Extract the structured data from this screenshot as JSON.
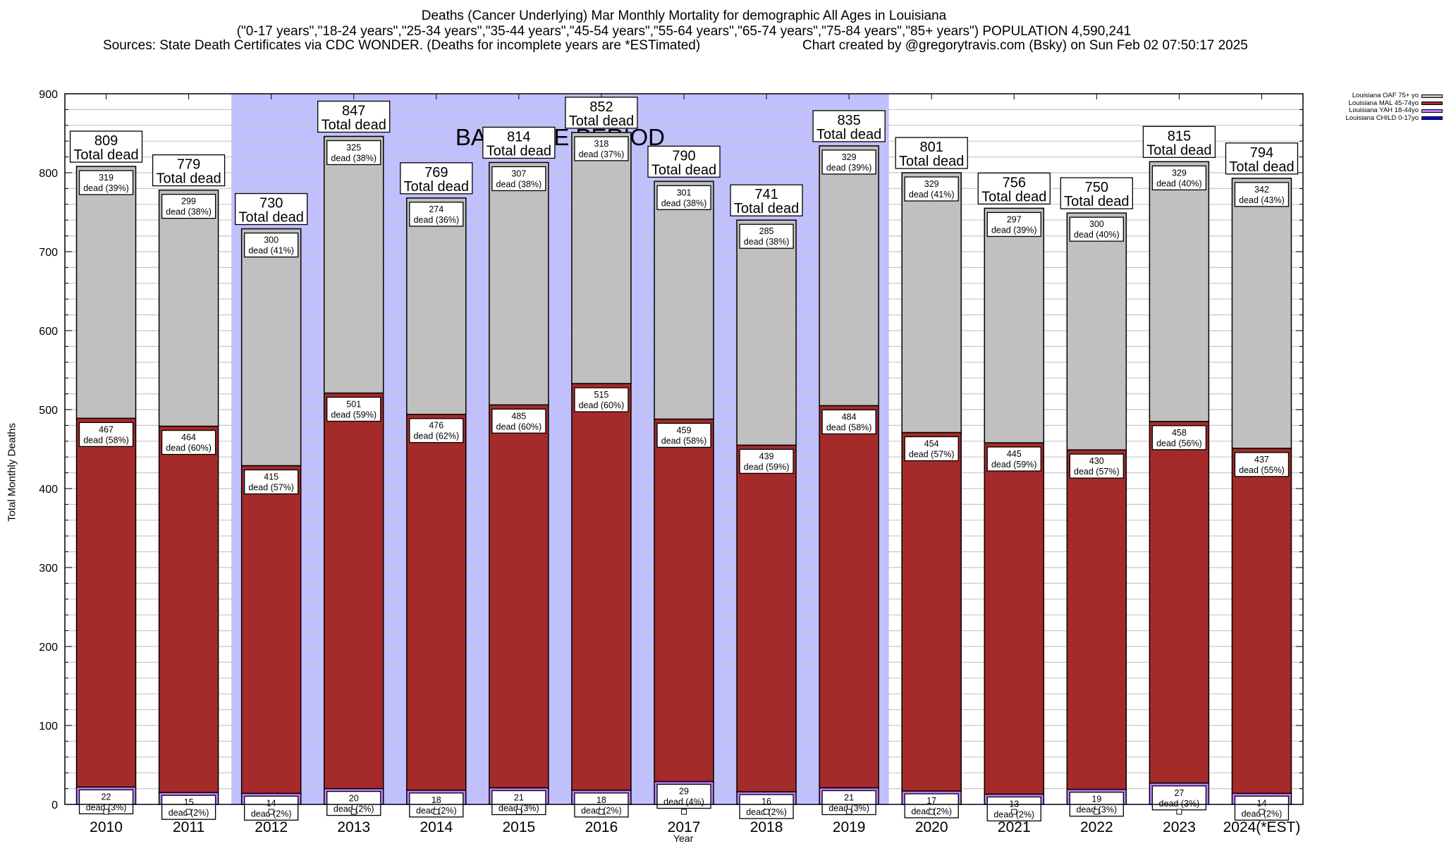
{
  "header": {
    "title": "Deaths (Cancer Underlying) Mar Monthly Mortality for demographic All Ages in Louisiana",
    "subtitle": "(\"0-17 years\",\"18-24 years\",\"25-34 years\",\"35-44 years\",\"45-54 years\",\"55-64 years\",\"65-74 years\",\"75-84 years\",\"85+ years\") POPULATION 4,590,241",
    "sources": "Sources: State Death Certificates via CDC WONDER. (Deaths for incomplete years are *ESTimated)",
    "credit": "Chart created by @gregorytravis.com (Bsky) on Sun Feb 02 07:50:17 2025"
  },
  "chart_data": {
    "type": "bar",
    "stacked": true,
    "title": "Deaths (Cancer Underlying) Mar Monthly Mortality for demographic All Ages in Louisiana",
    "xlabel": "Year",
    "ylabel": "Total Monthly Deaths",
    "ylim": [
      0,
      900
    ],
    "yticks": [
      0,
      100,
      200,
      300,
      400,
      500,
      600,
      700,
      800,
      900
    ],
    "minor_grid_step": 20,
    "grid": true,
    "legend_position": "top-right outside",
    "annotation": {
      "text": "BASELINE PERIOD",
      "from_category": "2012",
      "to_category": "2019",
      "color": "#c0c0ff"
    },
    "total_label_suffix": "Total dead",
    "segment_label_word": "dead",
    "categories": [
      "2010",
      "2011",
      "2012",
      "2013",
      "2014",
      "2015",
      "2016",
      "2017",
      "2018",
      "2019",
      "2020",
      "2021",
      "2022",
      "2023",
      "2024(*EST)"
    ],
    "totals": [
      809,
      779,
      730,
      847,
      769,
      814,
      852,
      790,
      741,
      835,
      801,
      756,
      750,
      815,
      794
    ],
    "series": [
      {
        "name": "Louisiana CHILD 0-17yo",
        "color": "#0000ff",
        "values": [
          0,
          0,
          0,
          0,
          0,
          0,
          0,
          0,
          0,
          0,
          0,
          0,
          0,
          0,
          0
        ]
      },
      {
        "name": "Louisiana YAH 18-44yo",
        "color": "#c080ff",
        "values": [
          22,
          15,
          14,
          20,
          18,
          21,
          18,
          29,
          16,
          21,
          17,
          13,
          19,
          27,
          14
        ],
        "percents": [
          "3%",
          "2%",
          "2%",
          "2%",
          "2%",
          "3%",
          "2%",
          "4%",
          "2%",
          "3%",
          "2%",
          "2%",
          "3%",
          "3%",
          "2%"
        ]
      },
      {
        "name": "Louisiana MAL 45-74yo",
        "color": "#a52a2a",
        "values": [
          467,
          464,
          415,
          501,
          476,
          485,
          515,
          459,
          439,
          484,
          454,
          445,
          430,
          458,
          437
        ],
        "percents": [
          "58%",
          "60%",
          "57%",
          "59%",
          "62%",
          "60%",
          "60%",
          "58%",
          "59%",
          "58%",
          "57%",
          "59%",
          "57%",
          "56%",
          "55%"
        ]
      },
      {
        "name": "Louisiana OAF 75+ yo",
        "color": "#c0c0c0",
        "values": [
          319,
          299,
          300,
          325,
          274,
          307,
          318,
          301,
          285,
          329,
          329,
          297,
          300,
          329,
          342
        ],
        "percents": [
          "39%",
          "38%",
          "41%",
          "38%",
          "36%",
          "38%",
          "37%",
          "38%",
          "38%",
          "39%",
          "41%",
          "39%",
          "40%",
          "40%",
          "43%"
        ]
      }
    ]
  },
  "legend": {
    "items": [
      {
        "label": "Louisiana OAF 75+ yo",
        "color": "#c0c0c0"
      },
      {
        "label": "Louisiana MAL 45-74yo",
        "color": "#a52a2a"
      },
      {
        "label": "Louisiana YAH 18-44yo",
        "color": "#c080ff"
      },
      {
        "label": "Louisiana CHILD 0-17yo",
        "color": "#0000ff"
      }
    ]
  }
}
